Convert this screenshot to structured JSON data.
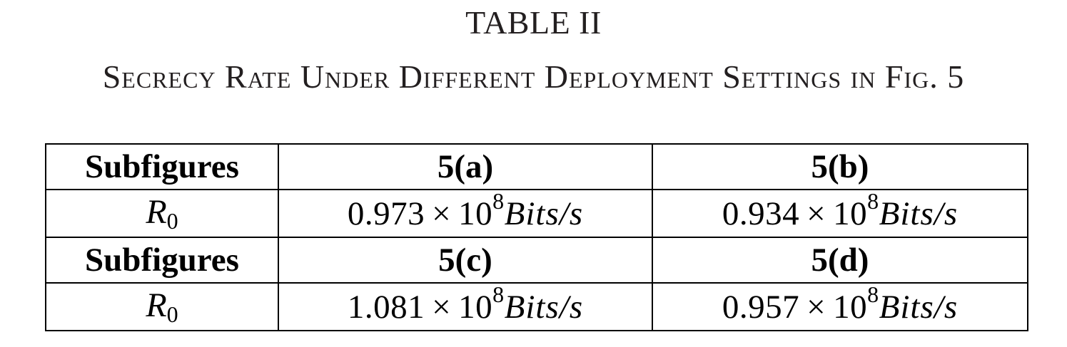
{
  "table": {
    "label": "TABLE II",
    "caption": "Secrecy Rate Under Different Deployment Settings in Fig. 5",
    "rows": [
      {
        "type": "header",
        "cells": [
          "Subfigures",
          "5(a)",
          "5(b)"
        ]
      },
      {
        "type": "values",
        "symbol": "R",
        "subscript": "0",
        "cells": [
          {
            "mantissa": "0.973",
            "times": "×",
            "base": "10",
            "exponent": "8",
            "unit": "Bits/s"
          },
          {
            "mantissa": "0.934",
            "times": "×",
            "base": "10",
            "exponent": "8",
            "unit": "Bits/s"
          }
        ]
      },
      {
        "type": "header",
        "cells": [
          "Subfigures",
          "5(c)",
          "5(d)"
        ]
      },
      {
        "type": "values",
        "symbol": "R",
        "subscript": "0",
        "cells": [
          {
            "mantissa": "1.081",
            "times": "×",
            "base": "10",
            "exponent": "8",
            "unit": "Bits/s"
          },
          {
            "mantissa": "0.957",
            "times": "×",
            "base": "10",
            "exponent": "8",
            "unit": "Bits/s"
          }
        ]
      }
    ]
  }
}
